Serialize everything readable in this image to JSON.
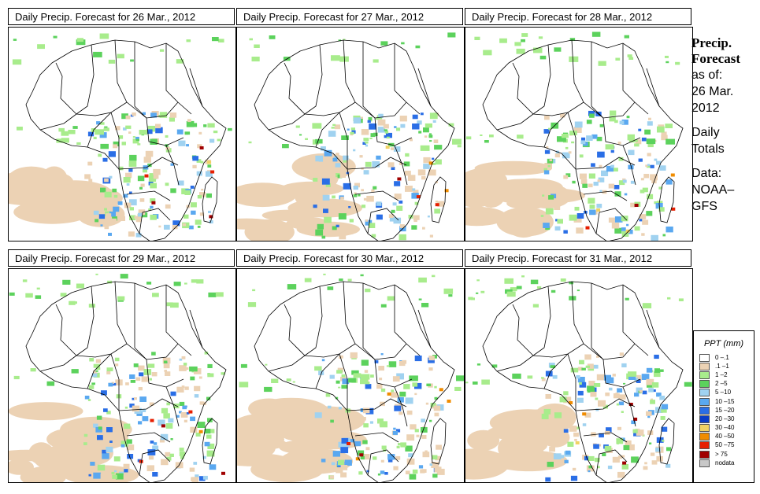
{
  "panels": [
    {
      "title": "Daily Precip. Forecast for  26 Mar., 2012"
    },
    {
      "title": "Daily Precip. Forecast for  27 Mar., 2012"
    },
    {
      "title": "Daily Precip. Forecast for  28 Mar., 2012"
    },
    {
      "title": "Daily Precip. Forecast for  29 Mar., 2012"
    },
    {
      "title": "Daily Precip. Forecast for  30 Mar., 2012"
    },
    {
      "title": "Daily Precip. Forecast for  31 Mar., 2012"
    }
  ],
  "sidebar": {
    "heading_line1": "Precip.",
    "heading_line2": "Forecast",
    "asof_line1": "as of:",
    "asof_line2": "26 Mar.",
    "asof_line3": "2012",
    "daily_line1": "Daily",
    "daily_line2": "Totals",
    "data_line1": "Data:",
    "data_line2": "NOAA–",
    "data_line3": "GFS"
  },
  "legend": {
    "title": "PPT (mm)",
    "items": [
      {
        "label": "0 –.1",
        "color": "#ffffff"
      },
      {
        "label": ".1 –1",
        "color": "#ecd2b4"
      },
      {
        "label": "1 –2",
        "color": "#a8ec8c"
      },
      {
        "label": "2 –5",
        "color": "#5cd25c"
      },
      {
        "label": "5 –10",
        "color": "#a0d2f0"
      },
      {
        "label": "10 –15",
        "color": "#5aa8f0"
      },
      {
        "label": "15 –20",
        "color": "#2a6ee6"
      },
      {
        "label": "20 –30",
        "color": "#0a3cc8"
      },
      {
        "label": "30 –40",
        "color": "#f0d264"
      },
      {
        "label": "40 –50",
        "color": "#f08c00"
      },
      {
        "label": "50 –75",
        "color": "#e61e00"
      },
      {
        "label": "> 75",
        "color": "#a00000"
      },
      {
        "label": "nodata",
        "color": "#c8c8c8"
      }
    ]
  }
}
